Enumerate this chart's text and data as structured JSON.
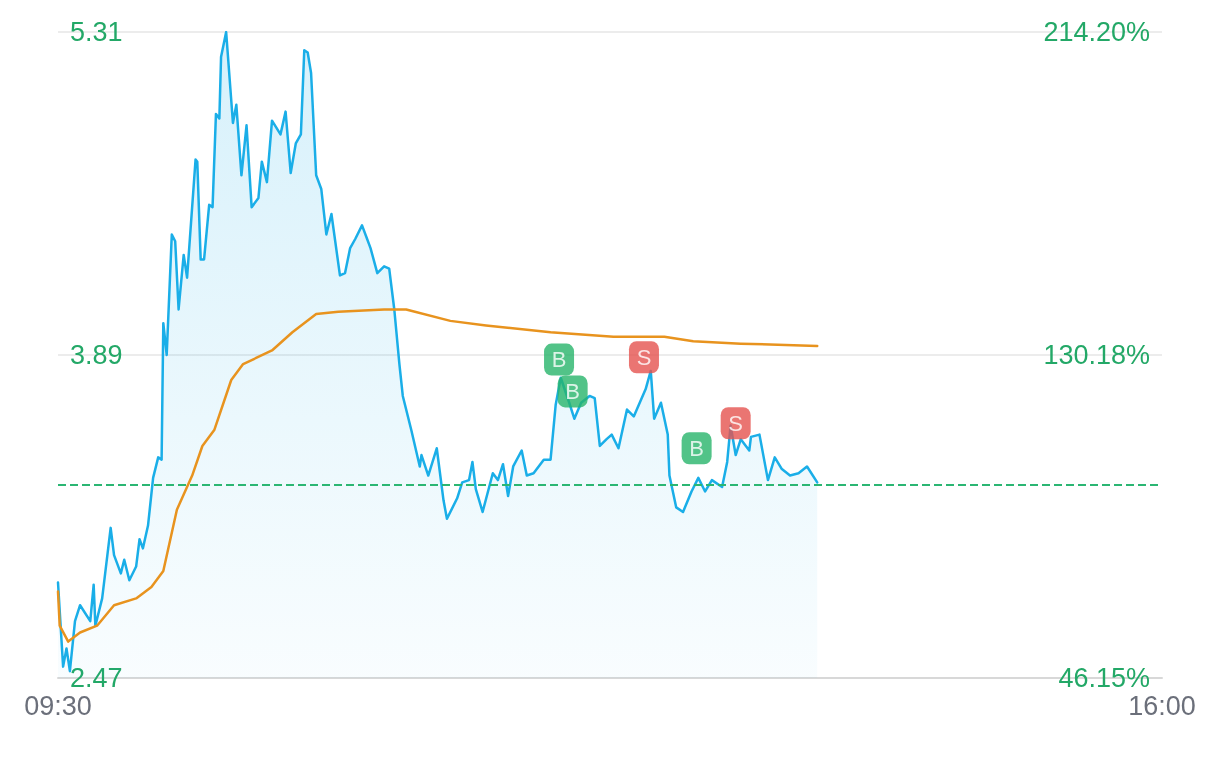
{
  "chart_data": {
    "type": "line",
    "xlim": [
      9.5,
      16
    ],
    "xticks": [
      {
        "value": 9.5,
        "label": "09:30"
      },
      {
        "value": 16,
        "label": "16:00"
      }
    ],
    "ylim": [
      2.47,
      5.31
    ],
    "yticks": [
      2.47,
      3.89,
      5.31
    ],
    "y2lim": [
      46.15,
      214.2
    ],
    "y2ticks": [
      {
        "value": 46.15,
        "label": "46.15%"
      },
      {
        "value": 130.18,
        "label": "130.18%"
      },
      {
        "value": 214.2,
        "label": "214.20%"
      }
    ],
    "grid": "y",
    "x": [
      9.5,
      9.53,
      9.55,
      9.57,
      9.6,
      9.63,
      9.69,
      9.71,
      9.72,
      9.76,
      9.81,
      9.83,
      9.87,
      9.89,
      9.92,
      9.96,
      9.98,
      10.0,
      10.03,
      10.06,
      10.09,
      10.11,
      10.12,
      10.14,
      10.17,
      10.19,
      10.21,
      10.24,
      10.26,
      10.31,
      10.32,
      10.34,
      10.36,
      10.39,
      10.41,
      10.43,
      10.45,
      10.46,
      10.49,
      10.53,
      10.55,
      10.58,
      10.61,
      10.64,
      10.68,
      10.7,
      10.73,
      10.76,
      10.81,
      10.84,
      10.87,
      10.9,
      10.93,
      10.95,
      10.97,
      10.99,
      11.02,
      11.05,
      11.08,
      11.11,
      11.16,
      11.19,
      11.22,
      11.25,
      11.29,
      11.32,
      11.34,
      11.38,
      11.42,
      11.45,
      11.48,
      11.51,
      11.53,
      11.58,
      11.63,
      11.64,
      11.68,
      11.73,
      11.77,
      11.79,
      11.85,
      11.88,
      11.92,
      11.94,
      11.96,
      12.0,
      12.06,
      12.09,
      12.12,
      12.15,
      12.18,
      12.23,
      12.26,
      12.3,
      12.36,
      12.4,
      12.43,
      12.46,
      12.51,
      12.54,
      12.58,
      12.63,
      12.66,
      12.69,
      12.73,
      12.76,
      12.8,
      12.85,
      12.89,
      12.96,
      12.99,
      13.01,
      13.05,
      13.09,
      13.1,
      13.14,
      13.18,
      13.23,
      13.27,
      13.31,
      13.35,
      13.41,
      13.44,
      13.46,
      13.49,
      13.52,
      13.57,
      13.58,
      13.63,
      13.68,
      13.72,
      13.76,
      13.81,
      13.86,
      13.91,
      13.97
    ],
    "series": [
      {
        "type": "area",
        "color": "#1aaee8",
        "values": [
          2.89,
          2.52,
          2.6,
          2.5,
          2.72,
          2.79,
          2.72,
          2.88,
          2.7,
          2.82,
          3.13,
          3.01,
          2.93,
          2.99,
          2.9,
          2.96,
          3.08,
          3.04,
          3.14,
          3.35,
          3.44,
          3.43,
          4.03,
          3.89,
          4.42,
          4.39,
          4.09,
          4.33,
          4.23,
          4.75,
          4.74,
          4.31,
          4.31,
          4.55,
          4.54,
          4.95,
          4.93,
          5.2,
          5.31,
          4.91,
          4.99,
          4.68,
          4.9,
          4.54,
          4.58,
          4.74,
          4.65,
          4.92,
          4.86,
          4.96,
          4.69,
          4.82,
          4.86,
          5.23,
          5.22,
          5.13,
          4.68,
          4.62,
          4.42,
          4.51,
          4.24,
          4.25,
          4.36,
          4.4,
          4.46,
          4.4,
          4.36,
          4.25,
          4.28,
          4.27,
          4.09,
          3.85,
          3.71,
          3.56,
          3.4,
          3.45,
          3.36,
          3.48,
          3.25,
          3.17,
          3.26,
          3.33,
          3.34,
          3.42,
          3.3,
          3.2,
          3.37,
          3.34,
          3.41,
          3.27,
          3.4,
          3.47,
          3.36,
          3.37,
          3.43,
          3.43,
          3.67,
          3.79,
          3.68,
          3.61,
          3.68,
          3.71,
          3.7,
          3.49,
          3.52,
          3.54,
          3.48,
          3.65,
          3.62,
          3.74,
          3.82,
          3.61,
          3.68,
          3.54,
          3.36,
          3.22,
          3.2,
          3.29,
          3.35,
          3.29,
          3.34,
          3.31,
          3.42,
          3.58,
          3.45,
          3.52,
          3.47,
          3.53,
          3.54,
          3.34,
          3.44,
          3.39,
          3.36,
          3.37,
          3.4,
          3.33
        ]
      },
      {
        "color": "#e8931e",
        "x": [
          9.5,
          9.51,
          9.56,
          9.63,
          9.73,
          9.83,
          9.96,
          10.05,
          10.12,
          10.2,
          10.29,
          10.35,
          10.42,
          10.52,
          10.59,
          10.76,
          10.88,
          11.02,
          11.15,
          11.42,
          11.55,
          11.81,
          12.02,
          12.4,
          12.77,
          13.07,
          13.24,
          13.52,
          13.97
        ],
        "values": [
          2.85,
          2.7,
          2.63,
          2.67,
          2.7,
          2.79,
          2.82,
          2.87,
          2.94,
          3.21,
          3.36,
          3.49,
          3.56,
          3.78,
          3.85,
          3.91,
          3.99,
          4.07,
          4.08,
          4.09,
          4.09,
          4.04,
          4.02,
          3.99,
          3.97,
          3.97,
          3.95,
          3.94,
          3.93
        ]
      },
      {
        "type": "scatter",
        "color": "#27b46a",
        "x": [
          12.45,
          12.53,
          13.26
        ],
        "values": [
          3.87,
          3.73,
          3.48
        ],
        "value_labels": [
          "B",
          "B",
          "B"
        ]
      },
      {
        "type": "scatter",
        "color": "#e5524f",
        "x": [
          12.95,
          13.49
        ],
        "values": [
          3.88,
          3.59
        ],
        "value_labels": [
          "S",
          "S"
        ]
      }
    ],
    "ref_lines": [
      {
        "axis": "y",
        "value": 3.32,
        "color": "#2bb673",
        "line_style": "dashed"
      }
    ]
  }
}
